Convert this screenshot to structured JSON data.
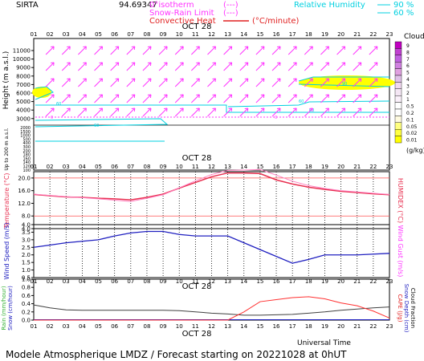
{
  "header": {
    "station": "SIRTA",
    "coords": "94.69347",
    "legend_isotherm": "0°isotherm",
    "legend_isotherm_key": "(---)",
    "legend_snowrain": "Snow-Rain Limit",
    "legend_snowrain_key": "(---)",
    "legend_convective": "Convective Heat",
    "legend_convective_unit": "(°C/minute)",
    "legend_rh": "Relative Humidity",
    "legend_rh_90": "90 %",
    "legend_rh_60": "60 %"
  },
  "date_label": "OCT 28",
  "hours": [
    "01",
    "02",
    "03",
    "04",
    "05",
    "06",
    "07",
    "08",
    "09",
    "10",
    "11",
    "12",
    "13",
    "14",
    "15",
    "16",
    "17",
    "18",
    "19",
    "20",
    "21",
    "22",
    "23"
  ],
  "footer": {
    "universal_time": "Universal Time",
    "model_line": "Modele Atmospherique LMDZ / Forecast starting on 20221028 at 0hUT"
  },
  "colors": {
    "wind_arrow": "#ff33ff",
    "rh_line": "#00d0e0",
    "isotherm": "#ff33ff",
    "temperature": "#e83050",
    "humidex": "#ff80c0",
    "wind_speed": "#2020c0",
    "precip": "#404040",
    "cape": "#ff3030"
  },
  "chart_data": [
    {
      "type": "scatter",
      "name": "height-panel",
      "ylabel": "Height  (m a.s.l.)",
      "ylabel_lower": "Up to 200 m a.s.l.",
      "y_ticks_upper": [
        "11000",
        "10000",
        "9000",
        "8000",
        "7000",
        "6000",
        "5000",
        "4000",
        "3000"
      ],
      "y_ticks_lower": [
        "2000",
        "1500",
        "1000",
        "500",
        "400",
        "300",
        "200",
        "180",
        "160",
        "140",
        "120",
        "100"
      ],
      "clouds_label": "Clouds",
      "cloud_scale": [
        "9",
        "8",
        "7",
        "6",
        "5",
        "4",
        "3",
        "2",
        "1",
        "0.5",
        "0.2",
        "0.1",
        "0.05",
        "0.02",
        "0.01"
      ],
      "cloud_unit": "(g/kg)",
      "isotherm_label": "0",
      "rh_labels": [
        "60",
        "60",
        "90",
        "60",
        "60"
      ]
    },
    {
      "type": "line",
      "name": "temperature-panel",
      "ylabel": "Temperature (°C)",
      "ylabel_right": "HUMIDEX (°C)",
      "y_ticks": [
        "20.0",
        "16.0",
        "12.0",
        "8.0",
        "4.0"
      ],
      "ylim": [
        4,
        22
      ],
      "series": [
        {
          "values": [
            14.8,
            14.4,
            14.0,
            13.9,
            13.6,
            13.4,
            13.1,
            13.9,
            14.9,
            16.8,
            18.6,
            20.4,
            21.6,
            21.6,
            21.4,
            19.4,
            18.1,
            17.1,
            16.4,
            15.8,
            15.4,
            15.0,
            14.7
          ]
        },
        {
          "values": [
            14.9,
            14.5,
            14.1,
            13.8,
            13.4,
            13.0,
            12.6,
            13.6,
            14.7,
            16.9,
            19.1,
            21.1,
            22.4,
            22.5,
            22.7,
            20.9,
            19.0,
            17.6,
            16.7,
            16.0,
            15.6,
            15.2,
            14.8
          ]
        }
      ]
    },
    {
      "type": "line",
      "name": "wind-panel",
      "ylabel": "Wind Speed (m/s)",
      "ylabel_right": "Wind Gust (m/s)",
      "y_ticks": [
        "4.0",
        "3.5",
        "3.0",
        "2.5",
        "2.0",
        "1.5",
        "1.0",
        "0.5"
      ],
      "ylim": [
        0.5,
        4.0
      ],
      "series": [
        {
          "values": [
            2.5,
            2.65,
            2.8,
            2.9,
            3.0,
            3.25,
            3.45,
            3.55,
            3.55,
            3.35,
            3.25,
            3.25,
            3.25,
            2.8,
            2.35,
            1.9,
            1.45,
            1.7,
            2.0,
            2.0,
            2.0,
            2.05,
            2.1
          ]
        }
      ]
    },
    {
      "type": "line",
      "name": "precip-panel",
      "ylabel": "Rain (mm/hour)",
      "ylabel2": "Snow (cm/hour)",
      "ylabel_right": "CAPE (J/g)",
      "ylabel_right2": "Snow Depth (cm)",
      "ylabel_right3": "Cloud Fraction",
      "y_ticks": [
        "1.0",
        "0.8",
        "0.6",
        "0.4",
        "0.2",
        "0.0"
      ],
      "ylim": [
        0,
        1.0
      ],
      "series": [
        {
          "values": [
            0.37,
            0.3,
            0.25,
            0.24,
            0.24,
            0.24,
            0.24,
            0.24,
            0.24,
            0.23,
            0.2,
            0.17,
            0.15,
            0.12,
            0.12,
            0.13,
            0.14,
            0.17,
            0.2,
            0.24,
            0.27,
            0.3,
            0.32
          ]
        },
        {
          "values": [
            0,
            0,
            0,
            0,
            0,
            0,
            0,
            0,
            0,
            0,
            0,
            0,
            0,
            0.2,
            0.45,
            0.5,
            0.55,
            0.57,
            0.52,
            0.42,
            0.35,
            0.22,
            0.05
          ]
        }
      ]
    }
  ]
}
